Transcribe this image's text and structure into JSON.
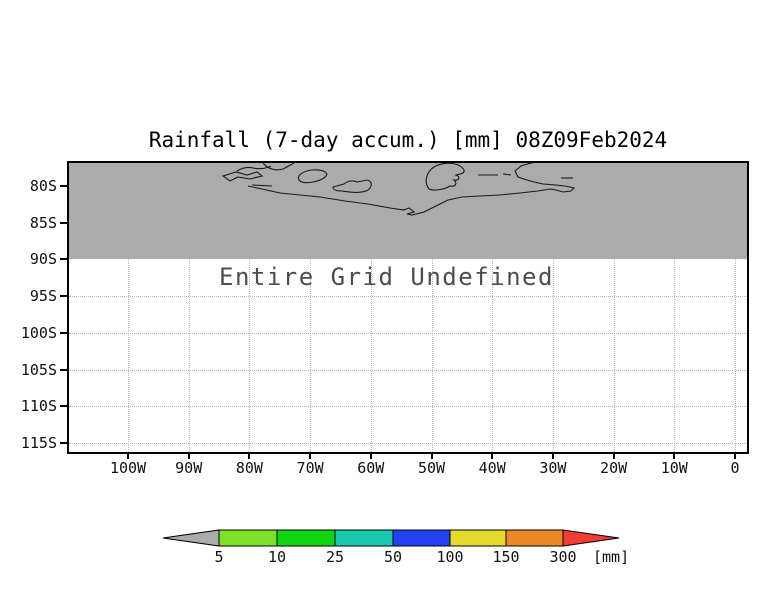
{
  "chart_data": {
    "type": "map-contour",
    "title": "Rainfall (7-day accum.) [mm] 08Z09Feb2024",
    "annotation": "Entire Grid Undefined",
    "variable": "Rainfall (7-day accum.)",
    "unit": "mm",
    "valid_time": "08Z09Feb2024",
    "data_values": "none plotted - entire grid undefined",
    "x_axis": {
      "ticks": [
        "100W",
        "90W",
        "80W",
        "70W",
        "60W",
        "50W",
        "40W",
        "30W",
        "20W",
        "10W",
        "0"
      ]
    },
    "y_axis": {
      "ticks": [
        "80S",
        "85S",
        "90S",
        "95S",
        "100S",
        "105S",
        "110S",
        "115S"
      ]
    },
    "grid": "dotted",
    "shaded_region": {
      "meaning": "undefined-data mask with coastline contours",
      "extent": "top of plot down to 90S",
      "color": "#ababab"
    },
    "colorbar": {
      "levels": [
        "5",
        "10",
        "25",
        "50",
        "100",
        "150",
        "300"
      ],
      "unit_label": "[mm]",
      "colors": [
        "#ababab",
        "#7de029",
        "#12d312",
        "#17c9af",
        "#2240f0",
        "#e3da2d",
        "#ee8725",
        "#f23c31"
      ]
    },
    "coastline_color": "#1a1a1a",
    "coastline_paths": [
      "M179,23 L193,26 L211,30 L231,32 L251,34 L276,38 L299,41 L321,45 L335,47 L340,45 L345,49 L338,51 L343,52 L355,49 L367,43 L379,37 L393,34 L411,33 L431,32 L451,30 L469,28 L481,26 L487,27 L494,29 L502,28 L505,25 L496,23 L487,22 L474,21 L461,18 L449,14 L446,8 L452,3 L462,0 L474,-2",
      "M194,0 C199,6 206,8 214,6 C220,3 223,1 225,0",
      "M168,8 Q176,3 184,5 Q194,7 202,3",
      "M154,13 L167,9 L178,12 L188,9 L193,13 L181,16 L169,14 L161,18 Z",
      "M183,22 L203,23",
      "M231,18 C226,13 234,8 243,7 C252,6 260,9 257,13 C253,18 237,22 231,18 Z",
      "M264,24 L275,21 C278,18 284,17 288,19 L298,17 C303,18 304,23 299,27 C292,31 280,29 273,28 C268,28 264,27 264,24 Z",
      "M360,26 C354,18 358,6 369,2 C380,-2 392,1 395,7 C396,11 390,11 387,12 C392,14 390,18 385,17 C389,21 386,24 381,23 C375,27 364,28 360,26 Z",
      "M409,12 L429,12 M434,11 L442,12",
      "M492,15 L504,15"
    ]
  }
}
